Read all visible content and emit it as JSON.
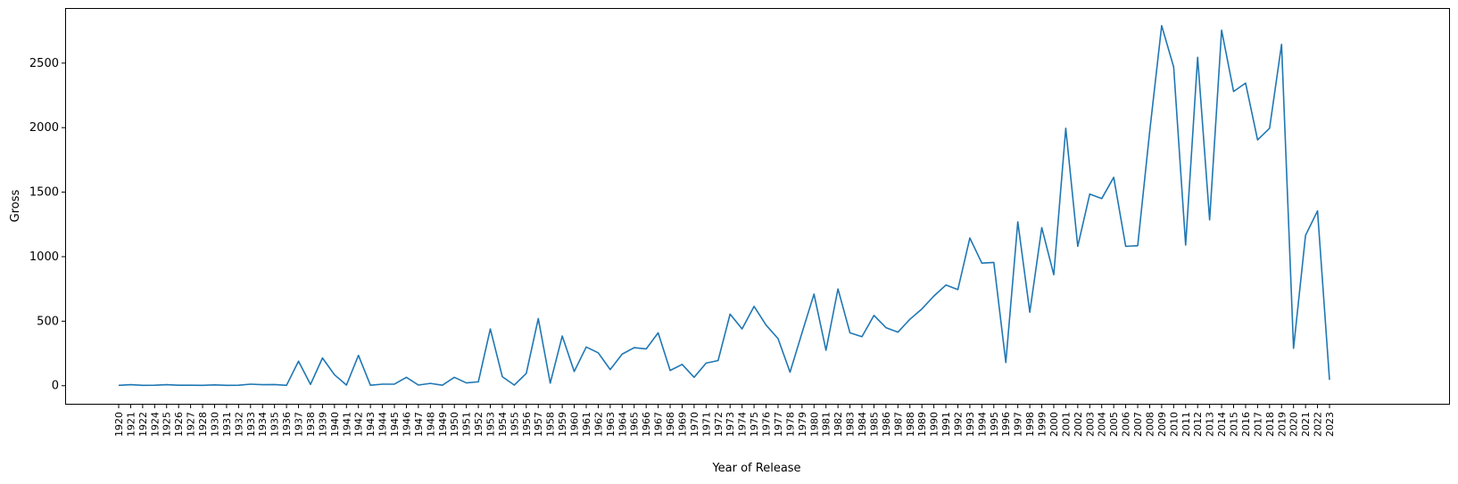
{
  "chart_data": {
    "type": "line",
    "title": "",
    "xlabel": "Year of Release",
    "ylabel": "Gross",
    "ylim": [
      -140,
      2920
    ],
    "yticks": [
      0,
      500,
      1000,
      1500,
      2000,
      2500
    ],
    "grid": false,
    "line_color": "#1f77b4",
    "categories": [
      "1920",
      "1921",
      "1922",
      "1924",
      "1925",
      "1926",
      "1927",
      "1928",
      "1930",
      "1931",
      "1932",
      "1933",
      "1934",
      "1935",
      "1936",
      "1937",
      "1938",
      "1939",
      "1940",
      "1941",
      "1942",
      "1943",
      "1944",
      "1945",
      "1946",
      "1947",
      "1948",
      "1949",
      "1950",
      "1951",
      "1952",
      "1953",
      "1954",
      "1955",
      "1956",
      "1957",
      "1958",
      "1959",
      "1960",
      "1961",
      "1962",
      "1963",
      "1964",
      "1965",
      "1966",
      "1967",
      "1968",
      "1969",
      "1970",
      "1971",
      "1972",
      "1973",
      "1974",
      "1975",
      "1976",
      "1977",
      "1978",
      "1979",
      "1980",
      "1981",
      "1982",
      "1983",
      "1984",
      "1985",
      "1986",
      "1987",
      "1988",
      "1989",
      "1990",
      "1991",
      "1992",
      "1993",
      "1994",
      "1995",
      "1996",
      "1997",
      "1998",
      "1999",
      "2000",
      "2001",
      "2002",
      "2003",
      "2004",
      "2005",
      "2006",
      "2007",
      "2008",
      "2009",
      "2010",
      "2011",
      "2012",
      "2013",
      "2014",
      "2015",
      "2016",
      "2017",
      "2018",
      "2019",
      "2020",
      "2021",
      "2022",
      "2023"
    ],
    "series": [
      {
        "values": [
          3,
          8,
          3,
          4,
          8,
          4,
          4,
          3,
          6,
          3,
          4,
          12,
          8,
          9,
          3,
          190,
          10,
          215,
          85,
          5,
          235,
          4,
          12,
          12,
          65,
          5,
          18,
          4,
          65,
          22,
          30,
          440,
          70,
          5,
          95,
          520,
          20,
          385,
          110,
          300,
          255,
          125,
          245,
          295,
          285,
          410,
          118,
          165,
          65,
          175,
          195,
          555,
          440,
          615,
          470,
          365,
          105,
          410,
          710,
          275,
          750,
          410,
          380,
          545,
          450,
          415,
          515,
          595,
          695,
          780,
          745,
          1145,
          950,
          955,
          180,
          1270,
          570,
          1225,
          860,
          1995,
          1080,
          1485,
          1450,
          1615,
          1080,
          1085,
          1970,
          2790,
          2470,
          1090,
          2545,
          1285,
          2755,
          2280,
          2345,
          1905,
          1995,
          2645,
          290,
          1165,
          1355,
          45
        ]
      }
    ]
  }
}
